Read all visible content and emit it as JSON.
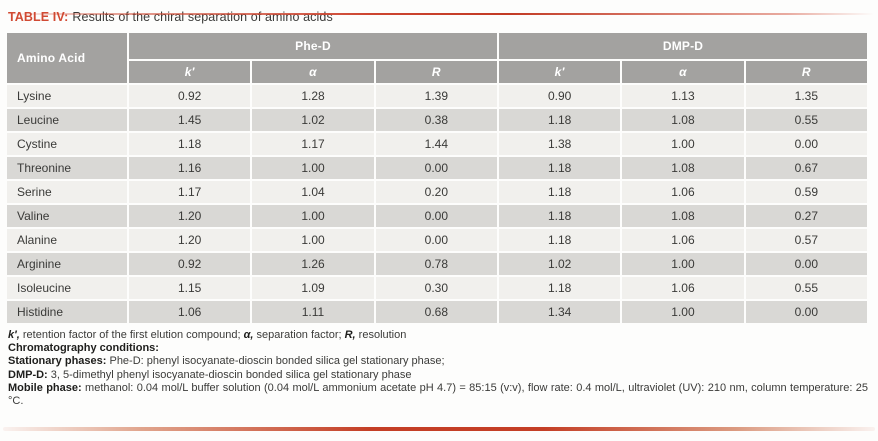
{
  "colors": {
    "accent_red": "#d14a33",
    "header_gray": "#a3a2a0",
    "row_light": "#f1f0ed",
    "row_dark": "#d9d8d5"
  },
  "title": {
    "label": "TABLE IV:",
    "text": "Results of the chiral separation of amino acids"
  },
  "table": {
    "row_header": "Amino Acid",
    "group_headers": [
      {
        "label": "Phe-D"
      },
      {
        "label": "DMP-D"
      }
    ],
    "sub_headers": [
      "k′",
      "α",
      "R",
      "k′",
      "α",
      "R"
    ],
    "rows": [
      {
        "name": "Lysine",
        "values": [
          "0.92",
          "1.28",
          "1.39",
          "0.90",
          "1.13",
          "1.35"
        ]
      },
      {
        "name": "Leucine",
        "values": [
          "1.45",
          "1.02",
          "0.38",
          "1.18",
          "1.08",
          "0.55"
        ]
      },
      {
        "name": "Cystine",
        "values": [
          "1.18",
          "1.17",
          "1.44",
          "1.38",
          "1.00",
          "0.00"
        ]
      },
      {
        "name": "Threonine",
        "values": [
          "1.16",
          "1.00",
          "0.00",
          "1.18",
          "1.08",
          "0.67"
        ]
      },
      {
        "name": "Serine",
        "values": [
          "1.17",
          "1.04",
          "0.20",
          "1.18",
          "1.06",
          "0.59"
        ]
      },
      {
        "name": "Valine",
        "values": [
          "1.20",
          "1.00",
          "0.00",
          "1.18",
          "1.08",
          "0.27"
        ]
      },
      {
        "name": "Alanine",
        "values": [
          "1.20",
          "1.00",
          "0.00",
          "1.18",
          "1.06",
          "0.57"
        ]
      },
      {
        "name": "Arginine",
        "values": [
          "0.92",
          "1.26",
          "0.78",
          "1.02",
          "1.00",
          "0.00"
        ]
      },
      {
        "name": "Isoleucine",
        "values": [
          "1.15",
          "1.09",
          "0.30",
          "1.18",
          "1.06",
          "0.55"
        ]
      },
      {
        "name": "Histidine",
        "values": [
          "1.06",
          "1.11",
          "0.68",
          "1.34",
          "1.00",
          "0.00"
        ]
      }
    ]
  },
  "footnotes": {
    "def_k": "k′,",
    "def_k_text": " retention factor of the first elution compound; ",
    "def_a": "α,",
    "def_a_text": " separation factor; ",
    "def_r": "R,",
    "def_r_text": " resolution",
    "conditions_label": "Chromatography conditions:",
    "stationary_label": "Stationary phases:",
    "stationary_text": " Phe-D: phenyl isocyanate-dioscin bonded silica gel stationary phase;",
    "dmp_label": "DMP-D:",
    "dmp_text": " 3, 5-dimethyl phenyl isocyanate-dioscin bonded silica gel stationary phase",
    "mobile_label": "Mobile phase:",
    "mobile_text": " methanol: 0.04 mol/L buffer solution (0.04 mol/L ammonium acetate pH 4.7) = 85:15 (v:v), flow rate: 0.4 mol/L, ultraviolet (UV): 210 nm, column temperature: 25 °C."
  }
}
